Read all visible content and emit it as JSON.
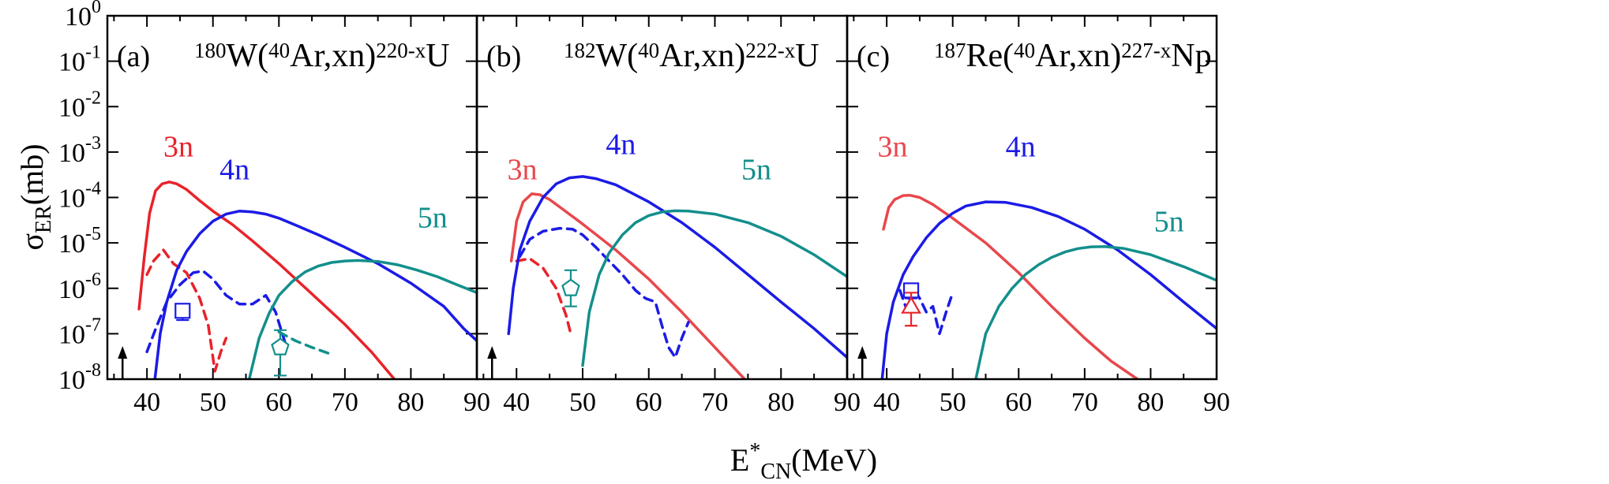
{
  "chart_data": {
    "type": "line",
    "ylabel": "σ_ER(mb)",
    "ylabel_main": "σ",
    "ylabel_sub": "ER",
    "ylabel_unit": "(mb)",
    "xlabel": "E*_CN(MeV)",
    "xlabel_main": "E",
    "xlabel_sup": "*",
    "xlabel_sub": "CN",
    "xlabel_unit": "(MeV)",
    "yscale": "log",
    "ylim": [
      1e-08,
      1
    ],
    "xlim": [
      34,
      90
    ],
    "x_ticks": [
      40,
      50,
      60,
      70,
      80,
      90
    ],
    "y_ticks": [
      -8,
      -7,
      -6,
      -5,
      -4,
      -3,
      -2,
      -1,
      0
    ],
    "colors": {
      "3n": "#e8232a",
      "3n_light": "#e8484c",
      "4n": "#1b1be6",
      "5n": "#138f8c"
    },
    "panels": [
      {
        "tag": "(a)",
        "reaction": {
          "target_mass": "180",
          "target": "W",
          "proj_mass": "40",
          "proj": "Ar",
          "channel": ",xn)",
          "cn_mass": "220-x",
          "product": "U"
        },
        "arrow_x": 36.3,
        "channel_labels": [
          {
            "text": "3n",
            "x": 42.5,
            "y": 0.0008,
            "color": "#e8232a"
          },
          {
            "text": "4n",
            "x": 51,
            "y": 0.00025,
            "color": "#1b1be6"
          },
          {
            "text": "5n",
            "x": 81,
            "y": 2.2e-05,
            "color": "#138f8c"
          }
        ],
        "series": [
          {
            "name": "3n",
            "style": "solid",
            "color": "#e8232a",
            "x": [
              38.8,
              39.6,
              40.4,
              41.3,
              42.3,
              43.4,
              44.5,
              46,
              48,
              50,
              53,
              56,
              60,
              65,
              70,
              74,
              77.5
            ],
            "y": [
              3.5e-07,
              5e-06,
              4.5e-05,
              0.00014,
              0.0002,
              0.00022,
              0.0002,
              0.00015,
              8.5e-05,
              5e-05,
              2.5e-05,
              1.1e-05,
              3.5e-06,
              7.5e-07,
              1.6e-07,
              4e-08,
              1e-08
            ]
          },
          {
            "name": "3n-dashed",
            "style": "dashed",
            "color": "#e8232a",
            "x": [
              40,
              41,
              42.5,
              44,
              46,
              48,
              49.3,
              50.3,
              51.2,
              52
            ],
            "y": [
              2e-06,
              4e-06,
              7e-06,
              3.5e-06,
              2.2e-06,
              6e-07,
              1.5e-07,
              1.5e-08,
              4e-08,
              8e-08
            ]
          },
          {
            "name": "4n",
            "style": "solid",
            "color": "#1b1be6",
            "x": [
              41.2,
              42,
              43,
              44.5,
              46,
              48,
              50,
              52,
              54,
              56,
              58,
              60,
              63,
              66,
              70,
              75,
              80,
              85,
              88,
              90
            ],
            "y": [
              1e-08,
              1e-07,
              5e-07,
              2.5e-06,
              6.5e-06,
              1.6e-05,
              3e-05,
              4.3e-05,
              5e-05,
              4.8e-05,
              4.3e-05,
              3.5e-05,
              2.3e-05,
              1.5e-05,
              8e-06,
              3.5e-06,
              1.3e-06,
              4e-07,
              1.3e-07,
              7e-08
            ]
          },
          {
            "name": "4n-dashed",
            "style": "dashed",
            "color": "#1b1be6",
            "x": [
              40,
              41.5,
              43,
              45,
              47,
              48.5,
              50,
              52,
              54,
              56,
              58,
              59.5,
              61
            ],
            "y": [
              4e-08,
              1.5e-07,
              5e-07,
              1.2e-06,
              2.2e-06,
              2.4e-06,
              1.6e-06,
              7e-07,
              4.5e-07,
              4.5e-07,
              7e-07,
              3e-07,
              6e-08
            ]
          },
          {
            "name": "5n",
            "style": "solid",
            "color": "#138f8c",
            "x": [
              55.5,
              57,
              58.5,
              60,
              62,
              64,
              66,
              68,
              70,
              72,
              75,
              78,
              81,
              84,
              87,
              90
            ],
            "y": [
              1e-08,
              8e-08,
              2.8e-07,
              7e-07,
              1.4e-06,
              2.3e-06,
              3.1e-06,
              3.7e-06,
              4e-06,
              4.1e-06,
              3.9e-06,
              3.3e-06,
              2.5e-06,
              1.8e-06,
              1.2e-06,
              8e-07
            ]
          },
          {
            "name": "5n-dashed",
            "style": "dashed",
            "color": "#138f8c",
            "x": [
              60,
              62.5,
              65,
              68
            ],
            "y": [
              1.1e-07,
              7e-08,
              5e-08,
              3.5e-08
            ]
          }
        ],
        "markers": [
          {
            "shape": "square",
            "x": 45.4,
            "y": 3.2e-07,
            "err_lo": 2e-07,
            "err_hi": 4e-07,
            "color": "#1b1be6"
          },
          {
            "shape": "pentagon",
            "x": 60.2,
            "y": 5e-08,
            "err_lo": 1.2e-08,
            "err_hi": 1.2e-07,
            "color": "#138f8c"
          }
        ]
      },
      {
        "tag": "(b)",
        "reaction": {
          "target_mass": "182",
          "target": "W",
          "proj_mass": "40",
          "proj": "Ar",
          "channel": ",xn)",
          "cn_mass": "222-x",
          "product": "U"
        },
        "arrow_x": 36.3,
        "channel_labels": [
          {
            "text": "3n",
            "x": 38.6,
            "y": 0.00025,
            "color": "#e8484c"
          },
          {
            "text": "4n",
            "x": 53.5,
            "y": 0.0009,
            "color": "#1b1be6"
          },
          {
            "text": "5n",
            "x": 74,
            "y": 0.00025,
            "color": "#138f8c"
          }
        ],
        "series": [
          {
            "name": "3n",
            "style": "solid",
            "color": "#e8484c",
            "x": [
              39.2,
              40,
              41,
              42.3,
              43.5,
              45,
              47,
              50,
              55,
              60,
              65,
              70,
              74.5
            ],
            "y": [
              4e-06,
              3e-05,
              8e-05,
              0.00012,
              0.000115,
              9e-05,
              5.5e-05,
              2.6e-05,
              7e-06,
              1.6e-06,
              3e-07,
              5e-08,
              1e-08
            ]
          },
          {
            "name": "3n-dashed",
            "style": "dashed",
            "color": "#e8232a",
            "x": [
              40,
              42,
              44,
              46,
              47.5,
              48.2
            ],
            "y": [
              4e-06,
              4.5e-06,
              2.8e-06,
              1e-06,
              2.5e-07,
              1e-07
            ]
          },
          {
            "name": "4n",
            "style": "solid",
            "color": "#1b1be6",
            "x": [
              38.8,
              39.5,
              40.5,
              42,
              44,
              46,
              48,
              50,
              52,
              55,
              60,
              65,
              70,
              75,
              80,
              85,
              90
            ],
            "y": [
              1e-07,
              1e-06,
              7e-06,
              3e-05,
              0.0001,
              0.0002,
              0.00027,
              0.00029,
              0.00026,
              0.00019,
              8e-05,
              2.8e-05,
              8e-06,
              2e-06,
              5e-07,
              1.3e-07,
              3e-08
            ]
          },
          {
            "name": "4n-dashed",
            "style": "dashed",
            "color": "#1b1be6",
            "x": [
              40.5,
              42,
              44,
              46.5,
              48.5,
              50,
              52,
              54,
              56,
              58,
              59.5,
              61,
              62,
              63,
              64,
              65,
              66
            ],
            "y": [
              5e-06,
              1.2e-05,
              1.8e-05,
              2.1e-05,
              2e-05,
              1.5e-05,
              8e-06,
              4e-06,
              2e-06,
              9e-07,
              6e-07,
              5e-07,
              1.5e-07,
              5e-08,
              3e-08,
              8e-08,
              1.8e-07
            ]
          },
          {
            "name": "5n",
            "style": "solid",
            "color": "#138f8c",
            "x": [
              50,
              51,
              52.5,
              54,
              56,
              58,
              60,
              62,
              64,
              66,
              70,
              75,
              80,
              85,
              90
            ],
            "y": [
              2e-08,
              3e-07,
              2e-06,
              6e-06,
              1.5e-05,
              2.8e-05,
              4e-05,
              4.8e-05,
              5.1e-05,
              5e-05,
              4.3e-05,
              2.8e-05,
              1.4e-05,
              5.5e-06,
              1.8e-06
            ]
          }
        ],
        "markers": [
          {
            "shape": "pentagon",
            "x": 48.2,
            "y": 1e-06,
            "err_lo": 4e-07,
            "err_hi": 2.5e-06,
            "color": "#138f8c"
          }
        ]
      },
      {
        "tag": "(c)",
        "reaction": {
          "target_mass": "187",
          "target": "Re",
          "proj_mass": "40",
          "proj": "Ar",
          "channel": ",xn)",
          "cn_mass": "227-x",
          "product": "Np"
        },
        "arrow_x": 36.3,
        "channel_labels": [
          {
            "text": "3n",
            "x": 38.6,
            "y": 0.0008,
            "color": "#e8484c"
          },
          {
            "text": "4n",
            "x": 58,
            "y": 0.0008,
            "color": "#1b1be6"
          },
          {
            "text": "5n",
            "x": 80.5,
            "y": 1.8e-05,
            "color": "#138f8c"
          }
        ],
        "series": [
          {
            "name": "3n",
            "style": "solid",
            "color": "#e8484c",
            "x": [
              39.5,
              40.3,
              41.2,
              42.5,
              43.5,
              45,
              47,
              50,
              55,
              60,
              65,
              70,
              74,
              78
            ],
            "y": [
              2e-05,
              6e-05,
              9e-05,
              0.00011,
              0.000112,
              0.0001,
              7e-05,
              3.5e-05,
              1e-05,
              2.2e-06,
              4e-07,
              8e-08,
              2.5e-08,
              1e-08
            ]
          },
          {
            "name": "4n",
            "style": "solid",
            "color": "#1b1be6",
            "x": [
              39.3,
              40,
              41,
              42.5,
              44,
              46,
              48,
              50,
              52,
              55,
              58,
              62,
              66,
              70,
              75,
              80,
              85,
              90
            ],
            "y": [
              1e-08,
              1e-07,
              5e-07,
              2e-06,
              5e-06,
              1.3e-05,
              2.7e-05,
              4.5e-05,
              6.5e-05,
              8e-05,
              7.8e-05,
              6e-05,
              3.8e-05,
              2e-05,
              7e-06,
              2e-06,
              5e-07,
              1.3e-07
            ]
          },
          {
            "name": "4n-dashed",
            "style": "dashed",
            "color": "#1b1be6",
            "x": [
              42,
              43,
              44,
              45,
              46,
              47,
              48,
              49,
              50
            ],
            "y": [
              9e-07,
              3.5e-07,
              1e-06,
              6e-07,
              3e-07,
              4e-07,
              1e-07,
              3e-07,
              8e-07
            ]
          },
          {
            "name": "5n",
            "style": "solid",
            "color": "#138f8c",
            "x": [
              53.5,
              55,
              57,
              59,
              61,
              63,
              65,
              67,
              69,
              71,
              73,
              76,
              80,
              85,
              90
            ],
            "y": [
              1e-08,
              1e-07,
              4e-07,
              1e-06,
              2e-06,
              3.3e-06,
              4.8e-06,
              6.3e-06,
              7.5e-06,
              8.2e-06,
              8.3e-06,
              7.5e-06,
              5.5e-06,
              3e-06,
              1.5e-06
            ]
          }
        ],
        "markers": [
          {
            "shape": "square",
            "x": 43.7,
            "y": 9e-07,
            "err_lo": 6e-07,
            "err_hi": 1.1e-06,
            "color": "#1b1be6"
          },
          {
            "shape": "triangle",
            "x": 43.7,
            "y": 4e-07,
            "err_lo": 1.5e-07,
            "err_hi": 8e-07,
            "color": "#e8232a"
          }
        ]
      }
    ]
  }
}
